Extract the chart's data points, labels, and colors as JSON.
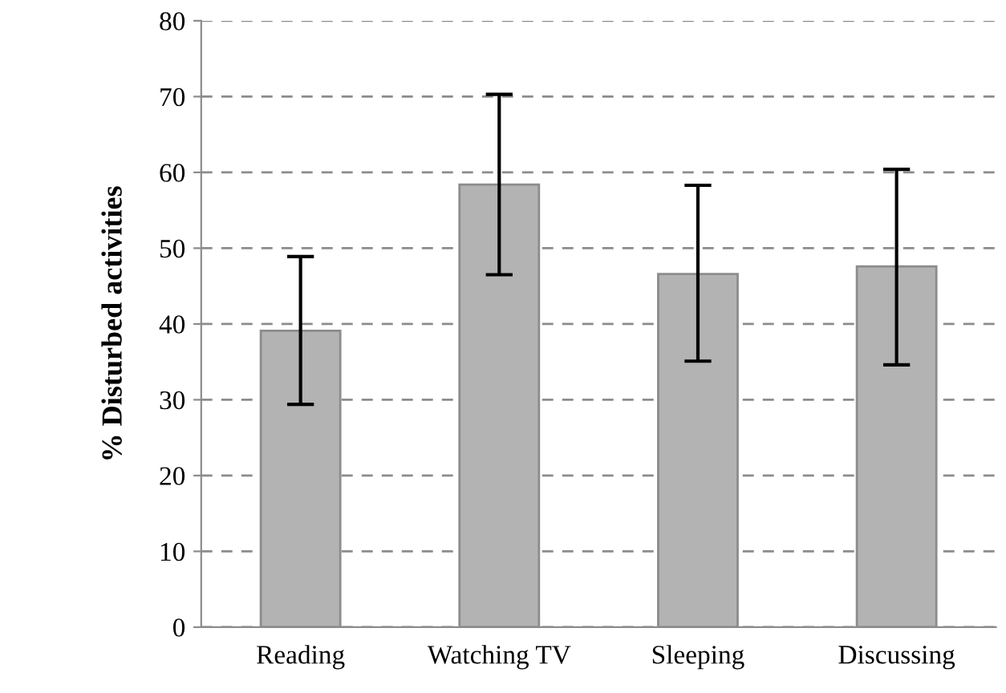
{
  "chart_data": {
    "type": "bar",
    "ylabel": "% Disturbed activities",
    "categories": [
      "Reading",
      "Watching TV",
      "Sleeping",
      "Discussing"
    ],
    "values": [
      39.1,
      58.4,
      46.6,
      47.6
    ],
    "errors": [
      [
        29.4,
        48.9
      ],
      [
        46.5,
        70.3
      ],
      [
        35.1,
        58.3
      ],
      [
        34.6,
        60.4
      ]
    ],
    "color": "#b3b3b3",
    "ylim": [
      0,
      80
    ],
    "yticks": [
      0,
      10,
      20,
      30,
      40,
      50,
      60,
      70,
      80
    ],
    "grid": "y"
  }
}
